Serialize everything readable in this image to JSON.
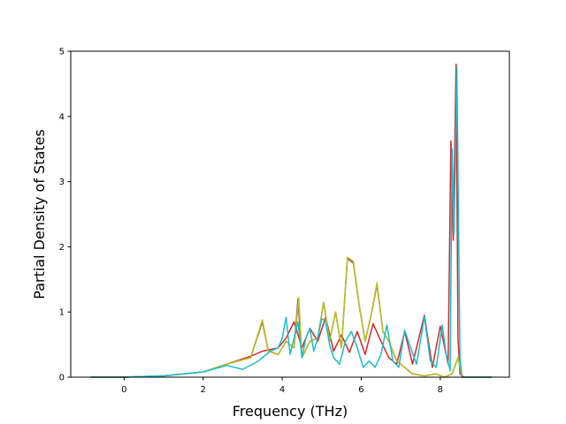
{
  "chart_data": {
    "type": "line",
    "title": "",
    "xlabel": "Frequency (THz)",
    "ylabel": "Partial Density of States",
    "xlim": [
      -1.35,
      9.75
    ],
    "ylim": [
      0,
      5
    ],
    "xticks": [
      0,
      2,
      4,
      6,
      8
    ],
    "yticks": [
      0,
      1,
      2,
      3,
      4,
      5
    ],
    "grid": false,
    "legend": "none",
    "series": [
      {
        "color": "#d62728",
        "x": [
          -0.85,
          0,
          1,
          2,
          2.6,
          3.2,
          3.5,
          3.9,
          4.1,
          4.3,
          4.5,
          4.7,
          4.9,
          5.1,
          5.3,
          5.5,
          5.7,
          5.9,
          6.1,
          6.3,
          6.5,
          6.7,
          6.9,
          7.1,
          7.3,
          7.6,
          7.8,
          8.0,
          8.2,
          8.27,
          8.33,
          8.4,
          8.45,
          8.5,
          8.6,
          9.3
        ],
        "y": [
          0,
          0,
          0.02,
          0.08,
          0.2,
          0.32,
          0.4,
          0.45,
          0.6,
          0.85,
          0.45,
          0.75,
          0.55,
          0.92,
          0.4,
          0.65,
          0.38,
          0.7,
          0.35,
          0.82,
          0.55,
          0.3,
          0.2,
          0.7,
          0.2,
          0.95,
          0.15,
          0.78,
          0.2,
          3.62,
          2.1,
          4.8,
          0.6,
          0.05,
          0,
          0
        ]
      },
      {
        "color": "#8c564b",
        "x": [
          -0.85,
          0,
          1,
          2,
          2.6,
          3.2,
          3.5,
          3.65,
          3.9,
          4.1,
          4.3,
          4.4,
          4.5,
          4.7,
          4.9,
          5.05,
          5.2,
          5.35,
          5.5,
          5.65,
          5.8,
          5.95,
          6.1,
          6.25,
          6.4,
          6.55,
          6.7,
          6.9,
          7.1,
          7.3,
          7.6,
          7.9,
          8.1,
          8.3,
          8.45,
          8.55,
          9.3
        ],
        "y": [
          0,
          0,
          0.02,
          0.08,
          0.2,
          0.3,
          0.85,
          0.4,
          0.35,
          0.55,
          0.45,
          1.2,
          0.3,
          0.55,
          0.6,
          1.15,
          0.55,
          1.0,
          0.45,
          1.82,
          1.75,
          1.1,
          0.55,
          0.95,
          1.42,
          0.7,
          0.55,
          0.25,
          0.15,
          0.05,
          0.02,
          0.05,
          0,
          0.05,
          0.3,
          0,
          0
        ]
      },
      {
        "color": "#bcbd22",
        "x": [
          -0.85,
          0,
          1,
          2,
          2.6,
          3.2,
          3.5,
          3.65,
          3.9,
          4.1,
          4.3,
          4.42,
          4.5,
          4.7,
          4.9,
          5.05,
          5.2,
          5.35,
          5.5,
          5.65,
          5.8,
          5.95,
          6.1,
          6.25,
          6.4,
          6.55,
          6.7,
          6.9,
          7.1,
          7.3,
          7.6,
          7.9,
          8.1,
          8.3,
          8.45,
          8.55,
          9.3
        ],
        "y": [
          0,
          0,
          0.02,
          0.08,
          0.2,
          0.3,
          0.88,
          0.4,
          0.35,
          0.55,
          0.45,
          1.22,
          0.3,
          0.55,
          0.6,
          1.15,
          0.55,
          1.0,
          0.45,
          1.84,
          1.78,
          1.1,
          0.55,
          0.95,
          1.45,
          0.7,
          0.55,
          0.25,
          0.15,
          0.05,
          0.02,
          0.05,
          0,
          0.05,
          0.3,
          0,
          0
        ]
      },
      {
        "color": "#17becf",
        "x": [
          -0.85,
          0,
          1,
          2,
          2.6,
          3.0,
          3.4,
          3.7,
          3.9,
          4.0,
          4.1,
          4.2,
          4.3,
          4.4,
          4.5,
          4.6,
          4.7,
          4.8,
          4.9,
          5.0,
          5.1,
          5.2,
          5.3,
          5.45,
          5.6,
          5.75,
          5.9,
          6.05,
          6.2,
          6.35,
          6.5,
          6.65,
          6.8,
          6.95,
          7.1,
          7.25,
          7.4,
          7.6,
          7.75,
          7.9,
          8.05,
          8.15,
          8.25,
          8.3,
          8.35,
          8.42,
          8.5,
          8.55,
          9.3
        ],
        "y": [
          0,
          0,
          0.02,
          0.08,
          0.18,
          0.12,
          0.25,
          0.4,
          0.45,
          0.6,
          0.92,
          0.35,
          0.6,
          0.85,
          0.3,
          0.6,
          0.75,
          0.4,
          0.6,
          0.9,
          0.85,
          0.5,
          0.3,
          0.2,
          0.55,
          0.7,
          0.45,
          0.15,
          0.25,
          0.15,
          0.35,
          0.8,
          0.25,
          0.15,
          0.72,
          0.45,
          0.2,
          0.93,
          0.25,
          0.15,
          0.8,
          0.35,
          0.1,
          3.5,
          2.2,
          4.75,
          0.3,
          0,
          0
        ]
      }
    ]
  }
}
